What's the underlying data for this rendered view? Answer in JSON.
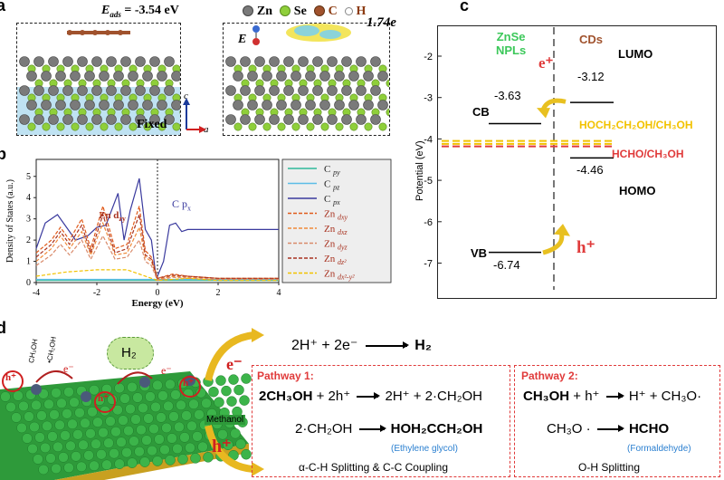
{
  "panel_a": {
    "label": "a",
    "eads": "E",
    "eads_sub": "ads",
    "eads_value": " = -3.54 eV",
    "legend": [
      {
        "symbol": "Zn",
        "color": "#7a7a7a"
      },
      {
        "symbol": "Se",
        "color": "#8fcf3a"
      },
      {
        "symbol": "C",
        "color": "#a0522d"
      },
      {
        "symbol": "H",
        "color": "#ffffff"
      }
    ],
    "fixed_label": "Fixed",
    "axis_c": "c",
    "axis_a": "a",
    "E_label": "E",
    "charge_label": "1.74e"
  },
  "panel_b": {
    "label": "b",
    "annot_zn": "Zn d",
    "annot_zn_sub": "zy",
    "annot_c": "C p",
    "annot_c_sub": "x"
  },
  "panel_c": {
    "label": "c",
    "ylabel": "Potential (eV)",
    "ticks": [
      "-2",
      "-3",
      "-4",
      "-5",
      "-6",
      "-7"
    ],
    "znse_label": "ZnSe\nNPLs",
    "znse_l1": "ZnSe",
    "znse_l2": "NPLs",
    "cds_label": "CDs",
    "lumo": "LUMO",
    "homo": "HOMO",
    "cb": "CB",
    "vb": "VB",
    "cb_val": "-3.63",
    "vb_val": "-6.74",
    "lumo_val": "-3.12",
    "homo_val": "-4.46",
    "redox1": "HOCH₂CH₂OH/CH₃OH",
    "redox2": "HCHO/CH₃OH",
    "e_plus": "e⁺",
    "h_plus": "h⁺",
    "colors": {
      "znse": "#3cc85a",
      "cds": "#a0522d",
      "redox1": "#f2c200",
      "redox2": "#e03b3b"
    }
  },
  "panel_d": {
    "label": "d",
    "h2": "H₂",
    "methanol": "Methanol",
    "ch3oh": "CH₃OH",
    "ch2oh": "•CH₂OH",
    "e_minus": "e⁻",
    "h_plus": "h⁺",
    "top_eq": {
      "left": "2H⁺ + 2e⁻",
      "right": "H₂"
    },
    "pathway1": {
      "title": "Pathway 1:",
      "eq1_left_b": "2CH₃OH",
      "eq1_left_r": " + 2h⁺",
      "eq1_right": "2H⁺ + 2·CH₂OH",
      "eq2_left": "2·CH₂OH",
      "eq2_right": "HOH₂CCH₂OH",
      "product": "(Ethylene glycol)",
      "caption": "α-C-H Splitting & C-C Coupling"
    },
    "pathway2": {
      "title": "Pathway 2:",
      "eq1_left_b": "CH₃OH",
      "eq1_left_r": " + h⁺",
      "eq1_right": "H⁺ + CH₃O·",
      "eq2_left": "CH₃O ·",
      "eq2_right": "HCHO",
      "product": "(Formaldehyde)",
      "caption": "O-H Splitting"
    }
  },
  "chart_data": {
    "type": "line",
    "title": "",
    "xlabel": "Energy (eV)",
    "ylabel": "Density of States (a.u.)",
    "xlim": [
      -4,
      4
    ],
    "xticks": [
      "-4",
      "-2",
      "0",
      "2",
      "4"
    ],
    "ylim": [
      0,
      5.8
    ],
    "yticks": [
      "0",
      "1",
      "2",
      "3",
      "4",
      "5"
    ],
    "legend_position": "right",
    "series": [
      {
        "name": "C py",
        "color": "#2fb89a",
        "style": "solid",
        "x": [
          -4,
          -3,
          -2,
          -1,
          0,
          1,
          2,
          3,
          4
        ],
        "y": [
          0.1,
          0.1,
          0.1,
          0.1,
          0.1,
          0.1,
          0.1,
          0.1,
          0.1
        ]
      },
      {
        "name": "C pz",
        "color": "#5bbce6",
        "style": "solid",
        "x": [
          -4,
          -3,
          -2,
          -1,
          0,
          1,
          2,
          3,
          4
        ],
        "y": [
          0.15,
          0.15,
          0.15,
          0.15,
          0.15,
          0.15,
          0.15,
          0.15,
          0.15
        ]
      },
      {
        "name": "C px",
        "color": "#3a3a9e",
        "style": "solid",
        "x": [
          -4,
          -3.7,
          -3.3,
          -3.0,
          -2.7,
          -2.3,
          -2.0,
          -1.7,
          -1.3,
          -1.1,
          -0.9,
          -0.6,
          -0.4,
          -0.2,
          -0.05,
          0,
          0.2,
          0.4,
          0.6,
          0.8,
          1.0,
          1.5,
          2.0,
          2.5,
          3.0,
          3.5,
          4.0
        ],
        "y": [
          1.6,
          2.8,
          3.2,
          2.6,
          2.0,
          2.2,
          2.6,
          2.7,
          4.2,
          2.0,
          3.4,
          4.9,
          2.5,
          2.0,
          0.3,
          0.3,
          1.0,
          2.7,
          2.8,
          2.4,
          2.5,
          2.5,
          2.5,
          2.5,
          2.5,
          2.5,
          2.5
        ]
      },
      {
        "name": "Zn dxy",
        "color": "#e05a1a",
        "style": "dashed",
        "x": [
          -4,
          -3.5,
          -3.2,
          -2.9,
          -2.5,
          -2.2,
          -1.8,
          -1.4,
          -1.0,
          -0.6,
          -0.4,
          -0.2,
          0,
          0.5,
          1,
          2,
          3,
          4
        ],
        "y": [
          1.4,
          2.0,
          2.6,
          2.0,
          3.0,
          1.6,
          3.6,
          1.6,
          1.8,
          3.6,
          1.5,
          1.2,
          0.2,
          0.4,
          0.3,
          0.2,
          0.2,
          0.2
        ]
      },
      {
        "name": "Zn dxz",
        "color": "#f08a3a",
        "style": "dashed",
        "x": [
          -4,
          -3.5,
          -3.2,
          -2.9,
          -2.5,
          -2.2,
          -1.8,
          -1.4,
          -1.0,
          -0.6,
          -0.4,
          -0.2,
          0,
          0.5,
          1,
          2,
          3,
          4
        ],
        "y": [
          1.0,
          1.6,
          2.2,
          1.6,
          2.4,
          1.3,
          2.8,
          1.3,
          1.4,
          2.6,
          1.2,
          1.0,
          0.15,
          0.3,
          0.25,
          0.2,
          0.2,
          0.2
        ]
      },
      {
        "name": "Zn dyz",
        "color": "#d98a6a",
        "style": "dashed",
        "x": [
          -4,
          -3.5,
          -3.2,
          -2.9,
          -2.5,
          -2.2,
          -1.8,
          -1.4,
          -1.0,
          -0.6,
          -0.4,
          -0.2,
          0,
          0.5,
          1,
          2,
          3,
          4
        ],
        "y": [
          0.8,
          1.3,
          1.8,
          1.3,
          2.0,
          1.1,
          2.2,
          1.1,
          1.2,
          2.0,
          1.0,
          0.8,
          0.1,
          0.25,
          0.2,
          0.15,
          0.15,
          0.15
        ]
      },
      {
        "name": "Zn dz2",
        "color": "#a83220",
        "style": "dashed",
        "x": [
          -4,
          -3.5,
          -3.2,
          -2.9,
          -2.5,
          -2.2,
          -1.8,
          -1.4,
          -1.0,
          -0.6,
          -0.4,
          -0.2,
          0,
          0.5,
          1,
          2,
          3,
          4
        ],
        "y": [
          1.2,
          1.8,
          2.4,
          1.8,
          2.7,
          1.4,
          3.2,
          1.4,
          1.6,
          3.2,
          1.3,
          1.1,
          0.2,
          0.35,
          0.3,
          0.2,
          0.2,
          0.2
        ]
      },
      {
        "name": "Zn dx2-y2",
        "color": "#f2c200",
        "style": "dashed",
        "x": [
          -4,
          -3,
          -2,
          -1,
          0,
          1,
          2,
          3,
          4
        ],
        "y": [
          0.3,
          0.5,
          0.6,
          0.6,
          0.1,
          0.2,
          0.1,
          0.1,
          0.1
        ]
      }
    ],
    "legend_entries": [
      {
        "text": "C ",
        "sub": "py",
        "color": "#2fb89a",
        "dash": false
      },
      {
        "text": "C ",
        "sub": "pz",
        "color": "#5bbce6",
        "dash": false
      },
      {
        "text": "C ",
        "sub": "px",
        "color": "#3a3a9e",
        "dash": false
      },
      {
        "text": "Zn ",
        "sub": "dxy",
        "color": "#e05a1a",
        "dash": true
      },
      {
        "text": "Zn ",
        "sub": "dxz",
        "color": "#f08a3a",
        "dash": true
      },
      {
        "text": "Zn ",
        "sub": "dyz",
        "color": "#d98a6a",
        "dash": true
      },
      {
        "text": "Zn ",
        "sub": "dz²",
        "color": "#a83220",
        "dash": true
      },
      {
        "text": "Zn ",
        "sub": "dx²-y²",
        "color": "#f2c200",
        "dash": true
      }
    ]
  }
}
